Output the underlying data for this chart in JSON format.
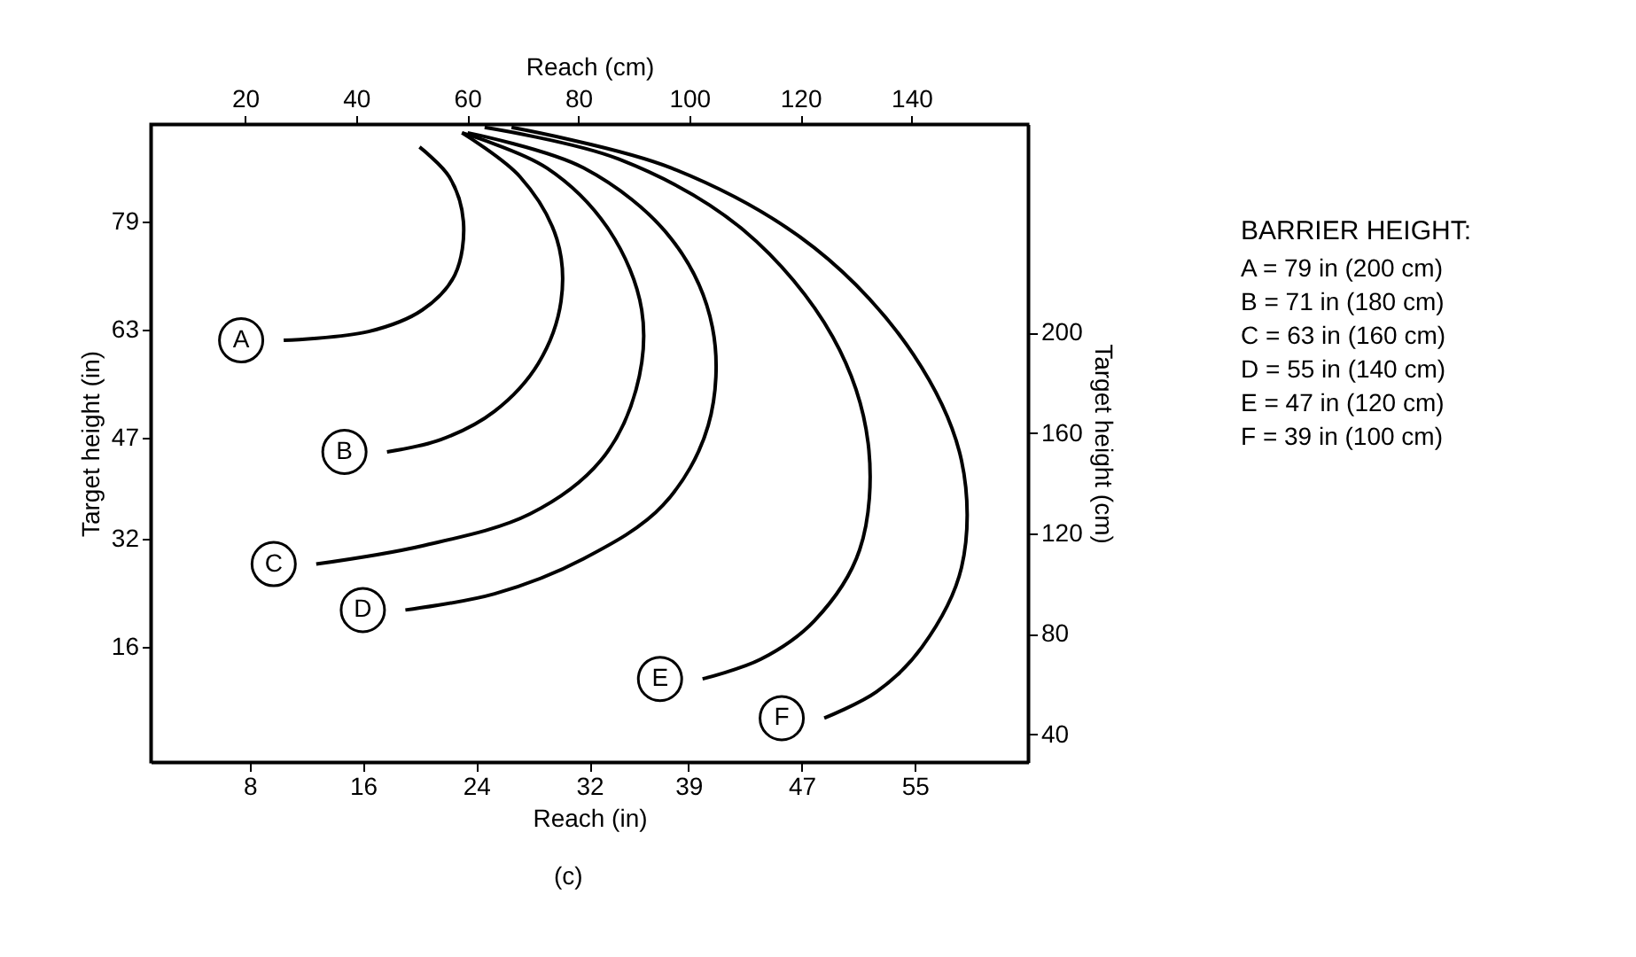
{
  "chart_data": {
    "type": "line",
    "xlabel": "Reach (in)",
    "ylabel": "Target height (in)",
    "x2label": "Reach (cm)",
    "y2label": "Target height (cm)",
    "legend_title": "BARRIER HEIGHT:",
    "xlim": [
      1,
      63
    ],
    "xticks": [
      8,
      16,
      24,
      32,
      39,
      47,
      55
    ],
    "ylim": [
      -1,
      93.4
    ],
    "yticks": [
      16,
      32,
      47,
      63,
      79
    ],
    "x2lim": [
      3,
      161
    ],
    "x2ticks": [
      20,
      40,
      60,
      80,
      100,
      120,
      140
    ],
    "y2lim": [
      29,
      283
    ],
    "y2ticks": [
      40,
      80,
      120,
      160,
      200
    ],
    "grid": false,
    "marker": "none",
    "line_style": "solid",
    "series": [
      {
        "name": "A",
        "color": "#000000",
        "x": [
          20.0,
          22.1,
          23.1,
          22.5,
          20.2,
          16.4,
          10.4
        ],
        "values": [
          90.0,
          85.6,
          79.0,
          71.1,
          65.9,
          62.7,
          61.4
        ]
      },
      {
        "name": "B",
        "color": "#000000",
        "x": [
          23.0,
          27.1,
          29.7,
          30.0,
          28.4,
          25.3,
          21.5,
          17.7
        ],
        "values": [
          92.1,
          85.6,
          76.4,
          67.2,
          58.0,
          50.9,
          46.7,
          44.9
        ]
      },
      {
        "name": "C",
        "color": "#000000",
        "x": [
          23.0,
          29.0,
          33.4,
          35.7,
          35.3,
          32.8,
          27.8,
          20.2,
          12.7
        ],
        "values": [
          92.1,
          86.9,
          77.7,
          65.9,
          54.1,
          43.6,
          35.7,
          31.0,
          28.3
        ]
      },
      {
        "name": "D",
        "color": "#000000",
        "x": [
          23.4,
          31.6,
          37.8,
          40.7,
          40.4,
          37.2,
          31.6,
          25.3,
          19.0
        ],
        "values": [
          92.1,
          86.9,
          76.4,
          63.3,
          48.8,
          37.0,
          29.1,
          23.9,
          21.5
        ]
      },
      {
        "name": "E",
        "color": "#000000",
        "x": [
          24.6,
          34.1,
          42.9,
          49.2,
          51.7,
          51.1,
          47.9,
          44.1,
          40.0
        ],
        "values": [
          92.9,
          88.2,
          77.7,
          61.9,
          46.2,
          30.4,
          19.9,
          14.2,
          11.3
        ]
      },
      {
        "name": "F",
        "color": "#000000",
        "x": [
          26.5,
          37.8,
          47.9,
          54.9,
          58.3,
          58.3,
          55.5,
          52.3,
          48.6
        ],
        "values": [
          92.9,
          86.9,
          75.1,
          59.3,
          43.6,
          27.8,
          16.0,
          9.4,
          5.5
        ]
      }
    ],
    "annotations": [
      "A = 79 in (200 cm)",
      "B = 71 in (180 cm)",
      "C = 63 in (160 cm)",
      "D = 55 in (140 cm)",
      "E = 47 in (120 cm)",
      "F = 39 in (100 cm)",
      "(c)"
    ]
  }
}
